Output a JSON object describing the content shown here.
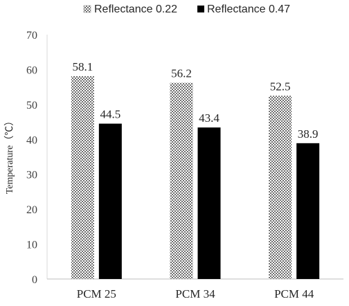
{
  "chart_data": {
    "type": "bar",
    "title": "",
    "xlabel": "",
    "ylabel": "Temperature（℃）",
    "categories": [
      "PCM 25",
      "PCM 34",
      "PCM 44"
    ],
    "series": [
      {
        "name": "Reflectance 0.22",
        "values": [
          58.1,
          56.2,
          52.5
        ],
        "pattern": "checkered-gray",
        "color": "#8c8c8c"
      },
      {
        "name": "Reflectance 0.47",
        "values": [
          44.5,
          43.4,
          38.9
        ],
        "pattern": "solid",
        "color": "#000000"
      }
    ],
    "ylim": [
      0,
      70
    ],
    "yticks": [
      0,
      10,
      20,
      30,
      40,
      50,
      60,
      70
    ],
    "grid": false,
    "legend_position": "top",
    "data_labels": true
  }
}
